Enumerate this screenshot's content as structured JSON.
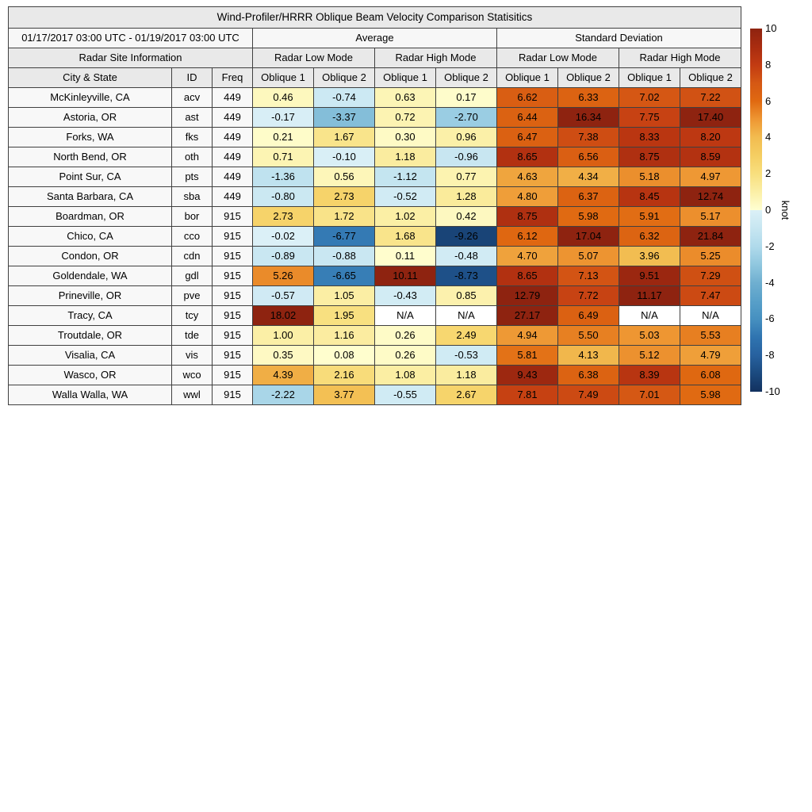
{
  "title": "Wind-Profiler/HRRR Oblique Beam Velocity Comparison Statisitics",
  "period": "01/17/2017 03:00 UTC - 01/19/2017 03:00 UTC",
  "table_header": {
    "average": "Average",
    "std_dev": "Standard Deviation",
    "site_info": "Radar Site Information",
    "low_mode": "Radar Low Mode",
    "high_mode": "Radar High Mode",
    "city": "City & State",
    "id": "ID",
    "freq": "Freq",
    "oblique1": "Oblique 1",
    "oblique2": "Oblique 2"
  },
  "colorbar": {
    "label": "knot",
    "min": -10,
    "max": 10,
    "ticks": [
      10,
      8,
      6,
      4,
      2,
      0,
      -2,
      -4,
      -6,
      -8,
      -10
    ],
    "positive_stops": [
      [
        0,
        "#FFFFD2"
      ],
      [
        1,
        "#FBEFA6"
      ],
      [
        2,
        "#F8DF7E"
      ],
      [
        3,
        "#F5CE62"
      ],
      [
        4,
        "#F2BC50"
      ],
      [
        5,
        "#EE9733"
      ],
      [
        6,
        "#E06911"
      ],
      [
        7,
        "#D55814"
      ],
      [
        8,
        "#C23B12"
      ],
      [
        9,
        "#A92C10"
      ],
      [
        10,
        "#8E2310"
      ]
    ],
    "negative_stops": [
      [
        -10,
        "#12315F"
      ],
      [
        -9,
        "#1B4A7F"
      ],
      [
        -8,
        "#27619F"
      ],
      [
        -7,
        "#2F74B0"
      ],
      [
        -6,
        "#4690C0"
      ],
      [
        -5,
        "#58A0C9"
      ],
      [
        -4,
        "#6FAFD0"
      ],
      [
        -3,
        "#90C7DF"
      ],
      [
        -2,
        "#B0DAEB"
      ],
      [
        -1,
        "#C7E6F1"
      ],
      [
        0,
        "#DBF0F7"
      ]
    ],
    "na_color": "#FFFFFF"
  },
  "chart_data": {
    "type": "heatmap",
    "title": "Wind-Profiler/HRRR Oblique Beam Velocity Comparison Statisitics",
    "period": "01/17/2017 03:00 UTC - 01/19/2017 03:00 UTC",
    "unit": "knot",
    "value_range": [
      -10,
      10
    ],
    "groups": [
      "Average",
      "Standard Deviation"
    ],
    "subgroups": [
      "Radar Low Mode",
      "Radar High Mode"
    ],
    "value_columns": [
      "Avg Low Oblique 1",
      "Avg Low Oblique 2",
      "Avg High Oblique 1",
      "Avg High Oblique 2",
      "SD Low Oblique 1",
      "SD Low Oblique 2",
      "SD High Oblique 1",
      "SD High Oblique 2"
    ],
    "rows": [
      {
        "city": "McKinleyville, CA",
        "id": "acv",
        "freq": "449",
        "values": [
          0.46,
          -0.74,
          0.63,
          0.17,
          6.62,
          6.33,
          7.02,
          7.22
        ]
      },
      {
        "city": "Astoria, OR",
        "id": "ast",
        "freq": "449",
        "values": [
          -0.17,
          -3.37,
          0.72,
          -2.7,
          6.44,
          16.34,
          7.75,
          17.4
        ]
      },
      {
        "city": "Forks, WA",
        "id": "fks",
        "freq": "449",
        "values": [
          0.21,
          1.67,
          0.3,
          0.96,
          6.47,
          7.38,
          8.33,
          8.2
        ]
      },
      {
        "city": "North Bend, OR",
        "id": "oth",
        "freq": "449",
        "values": [
          0.71,
          -0.1,
          1.18,
          -0.96,
          8.65,
          6.56,
          8.75,
          8.59
        ]
      },
      {
        "city": "Point Sur, CA",
        "id": "pts",
        "freq": "449",
        "values": [
          -1.36,
          0.56,
          -1.12,
          0.77,
          4.63,
          4.34,
          5.18,
          4.97
        ]
      },
      {
        "city": "Santa Barbara, CA",
        "id": "sba",
        "freq": "449",
        "values": [
          -0.8,
          2.73,
          -0.52,
          1.28,
          4.8,
          6.37,
          8.45,
          12.74
        ]
      },
      {
        "city": "Boardman, OR",
        "id": "bor",
        "freq": "915",
        "values": [
          2.73,
          1.72,
          1.02,
          0.42,
          8.75,
          5.98,
          5.91,
          5.17
        ]
      },
      {
        "city": "Chico, CA",
        "id": "cco",
        "freq": "915",
        "values": [
          -0.02,
          -6.77,
          1.68,
          -9.26,
          6.12,
          17.04,
          6.32,
          21.84
        ]
      },
      {
        "city": "Condon, OR",
        "id": "cdn",
        "freq": "915",
        "values": [
          -0.89,
          -0.88,
          0.11,
          -0.48,
          4.7,
          5.07,
          3.96,
          5.25
        ]
      },
      {
        "city": "Goldendale, WA",
        "id": "gdl",
        "freq": "915",
        "values": [
          5.26,
          -6.65,
          10.11,
          -8.73,
          8.65,
          7.13,
          9.51,
          7.29
        ]
      },
      {
        "city": "Prineville, OR",
        "id": "pve",
        "freq": "915",
        "values": [
          -0.57,
          1.05,
          -0.43,
          0.85,
          12.79,
          7.72,
          11.17,
          7.47
        ]
      },
      {
        "city": "Tracy, CA",
        "id": "tcy",
        "freq": "915",
        "values": [
          18.02,
          1.95,
          "N/A",
          "N/A",
          27.17,
          6.49,
          "N/A",
          "N/A"
        ]
      },
      {
        "city": "Troutdale, OR",
        "id": "tde",
        "freq": "915",
        "values": [
          1.0,
          1.16,
          0.26,
          2.49,
          4.94,
          5.5,
          5.03,
          5.53
        ]
      },
      {
        "city": "Visalia, CA",
        "id": "vis",
        "freq": "915",
        "values": [
          0.35,
          0.08,
          0.26,
          -0.53,
          5.81,
          4.13,
          5.12,
          4.79
        ]
      },
      {
        "city": "Wasco, OR",
        "id": "wco",
        "freq": "915",
        "values": [
          4.39,
          2.16,
          1.08,
          1.18,
          9.43,
          6.38,
          8.39,
          6.08
        ]
      },
      {
        "city": "Walla Walla, WA",
        "id": "wwl",
        "freq": "915",
        "values": [
          -2.22,
          3.77,
          -0.55,
          2.67,
          7.81,
          7.49,
          7.01,
          5.98
        ]
      }
    ]
  }
}
